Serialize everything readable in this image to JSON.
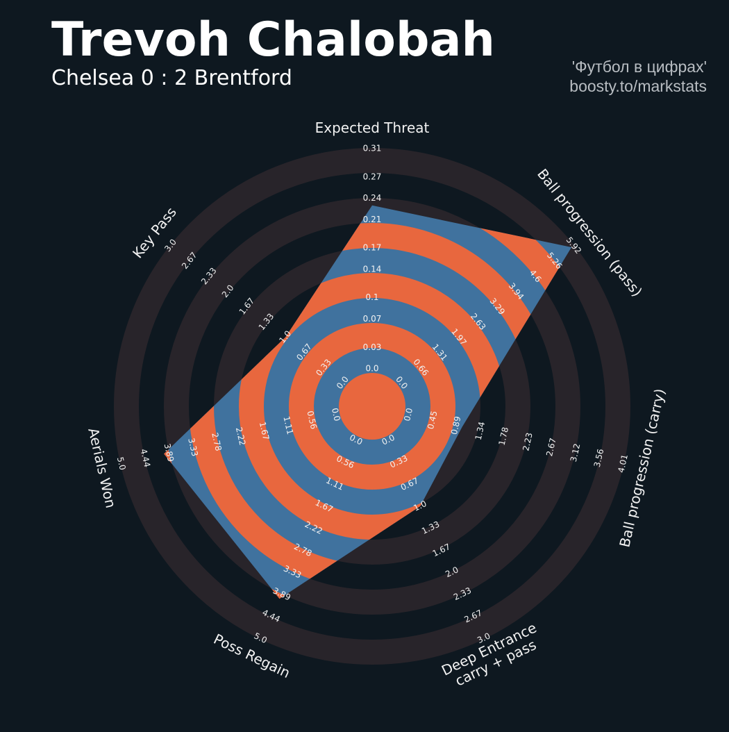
{
  "chart_data": {
    "type": "radar",
    "title": "Trevoh Chalobah",
    "subtitle": "Chelsea 0 : 2 Brentford",
    "credits": [
      "'Футбол в цифрах'",
      "boosty.to/markstats"
    ],
    "categories": [
      [
        "Expected Threat"
      ],
      [
        "Ball progression (pass)"
      ],
      [
        "Ball progression (carry)"
      ],
      [
        "Deep Entrance",
        "carry + pass"
      ],
      [
        "Poss Regain"
      ],
      [
        "Aerials Won"
      ],
      [
        "Key Pass"
      ]
    ],
    "values": [
      0.23,
      5.85,
      1.0,
      1.0,
      4.0,
      4.0,
      1.0
    ],
    "color": "#40729e",
    "ring_color": "#e8673e",
    "background_ring_color": "#28242a",
    "axes": [
      {
        "lim": [
          0,
          0.31
        ],
        "ticks": [
          {
            "value": 0,
            "label": "0.0"
          },
          0.03,
          0.07,
          0.1,
          0.14,
          0.17,
          0.21,
          0.24,
          0.27,
          0.31
        ]
      },
      {
        "lim": [
          0,
          5.92
        ],
        "ticks": [
          {
            "value": 0,
            "label": "0.0"
          },
          0.66,
          1.31,
          1.97,
          2.63,
          3.29,
          3.94,
          4.6,
          5.26,
          5.92
        ]
      },
      {
        "lim": [
          0,
          4.01
        ],
        "ticks": [
          {
            "value": 0,
            "label": "0.0"
          },
          0.45,
          0.89,
          1.34,
          1.78,
          2.23,
          2.67,
          3.12,
          3.56,
          4.01
        ]
      },
      {
        "lim": [
          0,
          3
        ],
        "ticks": [
          {
            "value": 0,
            "label": "0.0"
          },
          0.33,
          0.67,
          {
            "value": 1,
            "label": "1.0"
          },
          1.33,
          1.67,
          {
            "value": 2,
            "label": "2.0"
          },
          2.33,
          2.67,
          {
            "value": 3,
            "label": "3.0"
          }
        ]
      },
      {
        "lim": [
          0,
          5
        ],
        "ticks": [
          {
            "value": 0,
            "label": "0.0"
          },
          0.56,
          1.11,
          1.67,
          2.22,
          2.78,
          3.33,
          3.89,
          4.44,
          {
            "value": 5,
            "label": "5.0"
          }
        ]
      },
      {
        "lim": [
          0,
          5
        ],
        "ticks": [
          {
            "value": 0,
            "label": "0.0"
          },
          0.56,
          1.11,
          1.67,
          2.22,
          2.78,
          3.33,
          3.89,
          4.44,
          {
            "value": 5,
            "label": "5.0"
          }
        ]
      },
      {
        "lim": [
          0,
          3
        ],
        "ticks": [
          {
            "value": 0,
            "label": "0.0"
          },
          0.33,
          0.67,
          {
            "value": 1,
            "label": "1.0"
          },
          1.33,
          1.67,
          {
            "value": 2,
            "label": "2.0"
          },
          2.33,
          2.67,
          {
            "value": 3,
            "label": "3.0"
          }
        ]
      }
    ]
  }
}
